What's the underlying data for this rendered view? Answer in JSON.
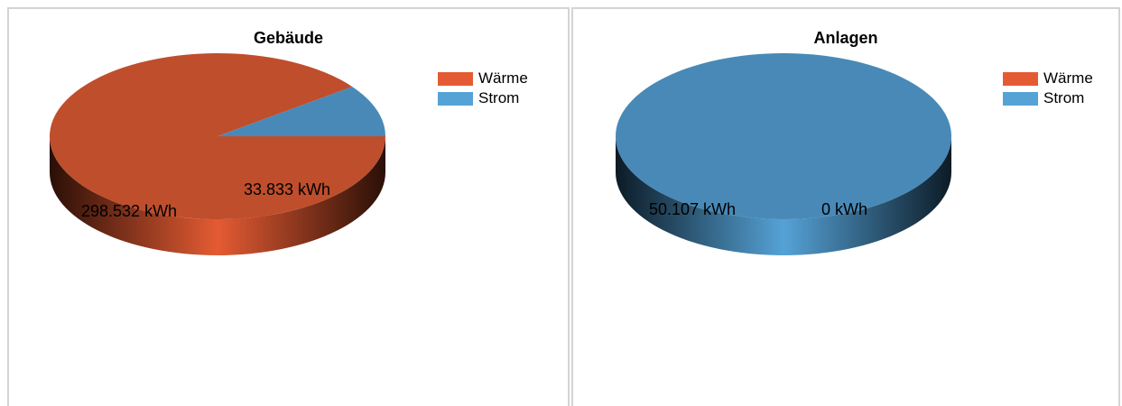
{
  "colors": {
    "waerme": "#E45B33",
    "waerme_top": "#BF4E2C",
    "strom": "#55A2D6",
    "strom_top": "#4889B7"
  },
  "panels": [
    {
      "title": "Gebäude",
      "legend": [
        {
          "label": "Wärme",
          "color": "#E45B33"
        },
        {
          "label": "Strom",
          "color": "#55A2D6"
        }
      ]
    },
    {
      "title": "Anlagen",
      "legend": [
        {
          "label": "Wärme",
          "color": "#E45B33"
        },
        {
          "label": "Strom",
          "color": "#55A2D6"
        }
      ]
    }
  ],
  "chart_data": [
    {
      "type": "pie",
      "title": "Gebäude",
      "categories": [
        "Wärme",
        "Strom"
      ],
      "values": [
        298532,
        33833
      ],
      "unit": "kWh",
      "data_labels": [
        "298.532 kWh",
        "33.833 kWh"
      ],
      "legend_position": "top-right",
      "style": "3d"
    },
    {
      "type": "pie",
      "title": "Anlagen",
      "categories": [
        "Wärme",
        "Strom"
      ],
      "values": [
        0,
        50107
      ],
      "unit": "kWh",
      "data_labels": [
        "0 kWh",
        "50.107 kWh"
      ],
      "legend_position": "top-right",
      "style": "3d"
    }
  ]
}
